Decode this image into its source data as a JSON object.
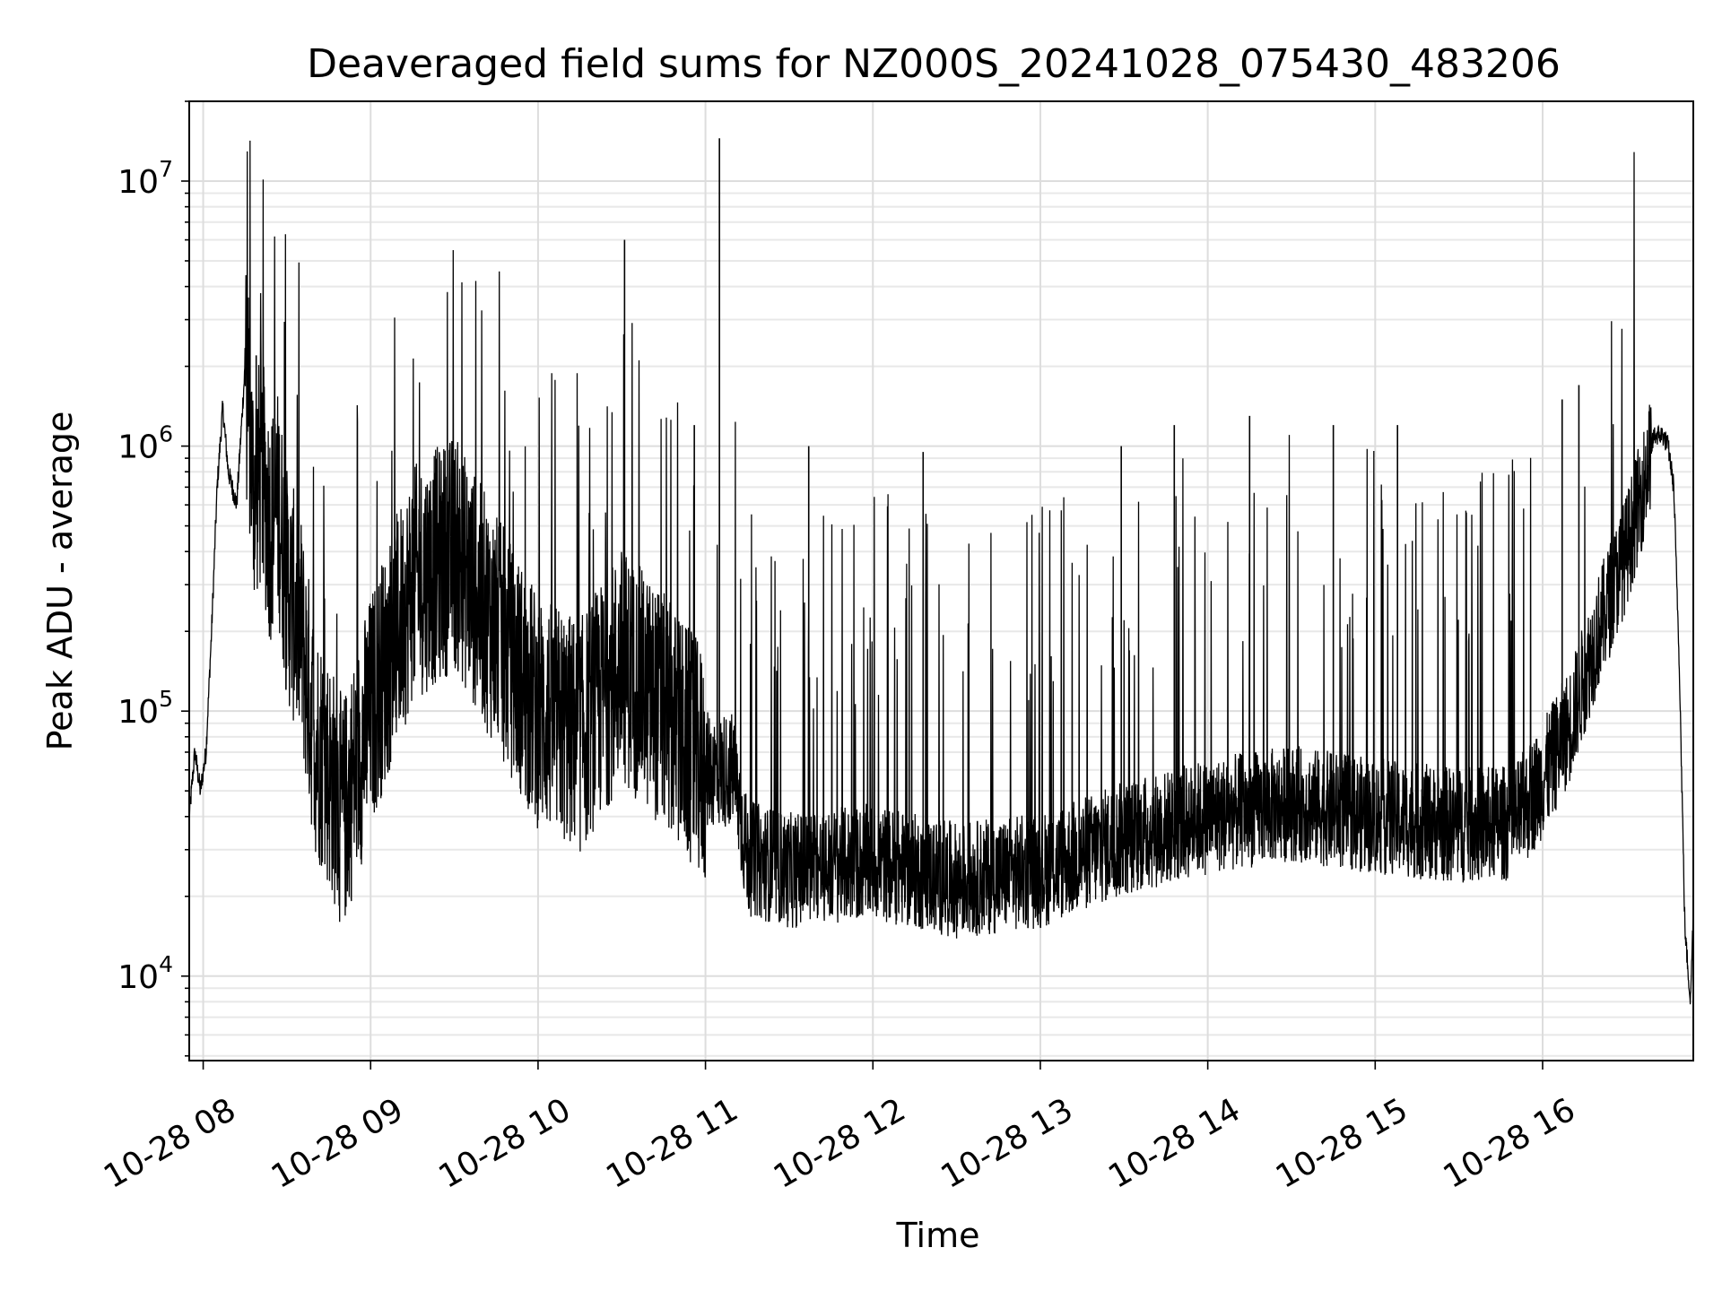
{
  "chart_data": {
    "type": "line",
    "title": "Deaveraged field sums for NZ000S_20241028_075430_483206",
    "xlabel": "Time",
    "ylabel": "Peak ADU - average",
    "yscale": "log",
    "ylim": [
      4800,
      20000000
    ],
    "xlim": [
      "2024-10-28 07:55",
      "2024-10-28 16:54"
    ],
    "grid": true,
    "line_color": "#000000",
    "x_ticks": [
      {
        "t": "2024-10-28 08:00",
        "label": "10-28 08"
      },
      {
        "t": "2024-10-28 09:00",
        "label": "10-28 09"
      },
      {
        "t": "2024-10-28 10:00",
        "label": "10-28 10"
      },
      {
        "t": "2024-10-28 11:00",
        "label": "10-28 11"
      },
      {
        "t": "2024-10-28 12:00",
        "label": "10-28 12"
      },
      {
        "t": "2024-10-28 13:00",
        "label": "10-28 13"
      },
      {
        "t": "2024-10-28 14:00",
        "label": "10-28 14"
      },
      {
        "t": "2024-10-28 15:00",
        "label": "10-28 15"
      },
      {
        "t": "2024-10-28 16:00",
        "label": "10-28 16"
      }
    ],
    "y_ticks": [
      {
        "value": 10000,
        "base": "10",
        "exp": "4"
      },
      {
        "value": 100000,
        "base": "10",
        "exp": "5"
      },
      {
        "value": 1000000,
        "base": "10",
        "exp": "6"
      },
      {
        "value": 10000000,
        "base": "10",
        "exp": "7"
      }
    ],
    "series": [
      {
        "x": [
          "2024-10-28 07:55",
          "2024-10-28 07:57",
          "2024-10-28 07:59",
          "2024-10-28 08:01",
          "2024-10-28 08:03",
          "2024-10-28 08:05",
          "2024-10-28 08:07",
          "2024-10-28 08:09",
          "2024-10-28 08:12",
          "2024-10-28 08:15",
          "2024-10-28 08:18",
          "2024-10-28 08:21",
          "2024-10-28 08:24",
          "2024-10-28 08:27",
          "2024-10-28 08:30",
          "2024-10-28 08:35",
          "2024-10-28 08:40",
          "2024-10-28 08:45",
          "2024-10-28 08:50",
          "2024-10-28 09:00",
          "2024-10-28 09:15",
          "2024-10-28 09:30",
          "2024-10-28 09:45",
          "2024-10-28 10:00",
          "2024-10-28 10:15",
          "2024-10-28 10:30",
          "2024-10-28 10:45",
          "2024-10-28 11:00",
          "2024-10-28 11:10",
          "2024-10-28 11:15",
          "2024-10-28 11:30",
          "2024-10-28 12:00",
          "2024-10-28 12:30",
          "2024-10-28 13:00",
          "2024-10-28 13:30",
          "2024-10-28 14:00",
          "2024-10-28 14:30",
          "2024-10-28 15:00",
          "2024-10-28 15:30",
          "2024-10-28 15:50",
          "2024-10-28 16:00",
          "2024-10-28 16:10",
          "2024-10-28 16:20",
          "2024-10-28 16:30",
          "2024-10-28 16:36",
          "2024-10-28 16:40",
          "2024-10-28 16:43",
          "2024-10-28 16:45",
          "2024-10-28 16:47",
          "2024-10-28 16:49",
          "2024-10-28 16:51",
          "2024-10-28 16:53",
          "2024-10-28 16:54"
        ],
        "y": [
          40000,
          70000,
          50000,
          70000,
          200000,
          700000,
          1400000,
          800000,
          600000,
          2000000,
          700000,
          800000,
          500000,
          600000,
          300000,
          200000,
          80000,
          60000,
          40000,
          100000,
          300000,
          400000,
          200000,
          100000,
          80000,
          150000,
          100000,
          60000,
          60000,
          28000,
          25000,
          27000,
          23000,
          25000,
          33000,
          40000,
          45000,
          40000,
          37000,
          38000,
          55000,
          90000,
          200000,
          400000,
          700000,
          1100000,
          1100000,
          1000000,
          700000,
          150000,
          15000,
          8000,
          18000
        ]
      }
    ],
    "spikes": [
      {
        "t": "2024-10-28 08:19",
        "y": 2200000
      },
      {
        "t": "2024-10-28 10:31",
        "y": 6000000
      },
      {
        "t": "2024-10-28 11:05",
        "y": 14500000
      },
      {
        "t": "2024-10-28 10:56",
        "y": 1200000
      },
      {
        "t": "2024-10-28 11:37",
        "y": 1000000
      },
      {
        "t": "2024-10-28 12:18",
        "y": 950000
      },
      {
        "t": "2024-10-28 13:29",
        "y": 1000000
      },
      {
        "t": "2024-10-28 13:48",
        "y": 1200000
      },
      {
        "t": "2024-10-28 14:15",
        "y": 1300000
      },
      {
        "t": "2024-10-28 14:45",
        "y": 1200000
      },
      {
        "t": "2024-10-28 15:08",
        "y": 1200000
      },
      {
        "t": "2024-10-28 16:07",
        "y": 1500000
      },
      {
        "t": "2024-10-28 16:13",
        "y": 1700000
      }
    ]
  }
}
